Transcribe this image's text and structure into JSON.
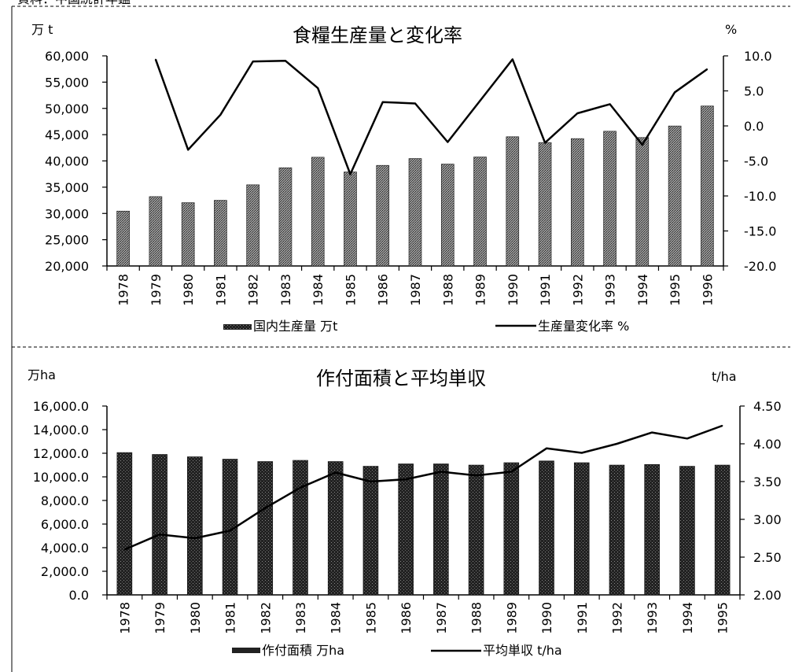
{
  "header": {
    "source_text": "資料：中国統計年鑑"
  },
  "chart_data": [
    {
      "type": "bar",
      "title": "食糧生産量と変化率",
      "y_unit_left": "万 t",
      "y_unit_right": "%",
      "categories": [
        "1978",
        "1979",
        "1980",
        "1981",
        "1982",
        "1983",
        "1984",
        "1985",
        "1986",
        "1987",
        "1988",
        "1989",
        "1990",
        "1991",
        "1992",
        "1993",
        "1994",
        "1995",
        "1996"
      ],
      "series": [
        {
          "name": "国内生産量 万t",
          "type": "bar",
          "axis": "left",
          "values": [
            30450,
            33200,
            32050,
            32500,
            35450,
            38700,
            40700,
            37900,
            39150,
            40450,
            39400,
            40750,
            44600,
            43500,
            44250,
            45650,
            44450,
            46650,
            50450
          ]
        },
        {
          "name": "生産量変化率 %",
          "type": "line",
          "axis": "right",
          "values": [
            null,
            9.5,
            -3.4,
            1.6,
            9.2,
            9.3,
            5.4,
            -6.9,
            3.4,
            3.2,
            -2.3,
            3.6,
            9.5,
            -2.4,
            1.8,
            3.1,
            -2.7,
            4.8,
            8.1
          ]
        }
      ],
      "ylim_left": [
        20000,
        60000
      ],
      "ylim_right": [
        -20.0,
        10.0
      ],
      "yticks_left": [
        "60,000",
        "55,000",
        "50,000",
        "45,000",
        "40,000",
        "35,000",
        "30,000",
        "25,000",
        "20,000"
      ],
      "yticks_right": [
        "10.0",
        "5.0",
        "0.0",
        "-5.0",
        "-10.0",
        "-15.0",
        "-20.0"
      ],
      "legend": "bottom",
      "grid": false
    },
    {
      "type": "bar",
      "title": "作付面積と平均単収",
      "y_unit_left": "万ha",
      "y_unit_right": "t/ha",
      "categories": [
        "1978",
        "1979",
        "1980",
        "1981",
        "1982",
        "1983",
        "1984",
        "1985",
        "1986",
        "1987",
        "1988",
        "1989",
        "1990",
        "1991",
        "1992",
        "1993",
        "1994",
        "1995"
      ],
      "series": [
        {
          "name": "作付面積 万ha",
          "type": "bar",
          "axis": "left",
          "values": [
            12060,
            11900,
            11700,
            11500,
            11300,
            11400,
            11300,
            10900,
            11100,
            11100,
            11000,
            11200,
            11350,
            11200,
            11000,
            11050,
            10900,
            11000
          ]
        },
        {
          "name": "平均単収 t/ha",
          "type": "line",
          "axis": "right",
          "values": [
            2.6,
            2.8,
            2.75,
            2.85,
            3.15,
            3.42,
            3.62,
            3.5,
            3.53,
            3.63,
            3.58,
            3.63,
            3.94,
            3.88,
            4.0,
            4.15,
            4.07,
            4.24
          ]
        }
      ],
      "ylim_left": [
        0,
        16000
      ],
      "ylim_right": [
        2.0,
        4.5
      ],
      "yticks_left": [
        "16,000.0",
        "14,000.0",
        "12,000.0",
        "10,000.0",
        "8,000.0",
        "6,000.0",
        "4,000.0",
        "2,000.0",
        "0.0"
      ],
      "yticks_right": [
        "4.50",
        "4.00",
        "3.50",
        "3.00",
        "2.50",
        "2.00"
      ],
      "legend": "bottom",
      "grid": false
    }
  ]
}
